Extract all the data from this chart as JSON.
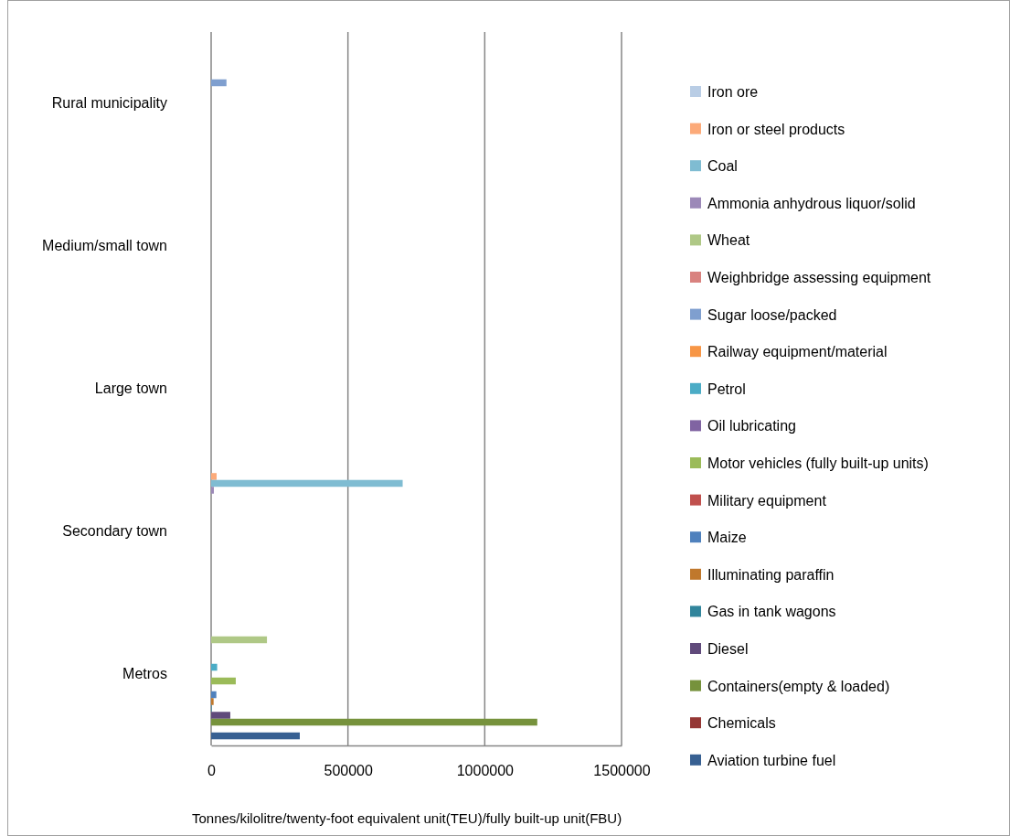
{
  "chart_data": {
    "type": "bar",
    "orientation": "horizontal",
    "xlabel": "Tonnes/kilolitre/twenty-foot equivalent unit(TEU)/fully built-up unit(FBU)",
    "categories": [
      "Rural municipality",
      "Medium/small town",
      "Large town",
      "Secondary town",
      "Metros"
    ],
    "xlim": [
      0,
      1500000
    ],
    "xticks": [
      0,
      500000,
      1000000,
      1500000
    ],
    "grid": "x",
    "legend": "right",
    "series": [
      {
        "name": "Iron ore",
        "color": "#b9cde5",
        "values": [
          null,
          null,
          null,
          null,
          null
        ]
      },
      {
        "name": "Iron or steel products",
        "color": "#fcaa79",
        "values": [
          null,
          null,
          null,
          20000,
          null
        ]
      },
      {
        "name": "Coal",
        "color": "#7fbcd2",
        "values": [
          null,
          null,
          null,
          700000,
          null
        ]
      },
      {
        "name": "Ammonia anhydrous liquor/solid",
        "color": "#9c89b8",
        "values": [
          null,
          null,
          null,
          10000,
          null
        ]
      },
      {
        "name": "Wheat",
        "color": "#afc886",
        "values": [
          null,
          null,
          null,
          null,
          204000
        ]
      },
      {
        "name": "Weighbridge assessing equipment",
        "color": "#d9827f",
        "values": [
          null,
          null,
          null,
          null,
          null
        ]
      },
      {
        "name": "Sugar loose/packed",
        "color": "#7f9fcf",
        "values": [
          56000,
          null,
          null,
          null,
          null
        ]
      },
      {
        "name": "Railway equipment/material",
        "color": "#f79646",
        "values": [
          null,
          null,
          null,
          null,
          null
        ]
      },
      {
        "name": "Petrol",
        "color": "#4bacc6",
        "values": [
          null,
          null,
          null,
          null,
          22000
        ]
      },
      {
        "name": "Oil lubricating",
        "color": "#8064a2",
        "values": [
          null,
          null,
          null,
          null,
          null
        ]
      },
      {
        "name": "Motor vehicles (fully built-up units)",
        "color": "#9bbb59",
        "values": [
          null,
          null,
          null,
          null,
          90000
        ]
      },
      {
        "name": "Military equipment",
        "color": "#c0504d",
        "values": [
          null,
          null,
          null,
          null,
          null
        ]
      },
      {
        "name": "Maize",
        "color": "#4f81bd",
        "values": [
          null,
          null,
          null,
          null,
          19000
        ]
      },
      {
        "name": "Illuminating paraffin",
        "color": "#c0782c",
        "values": [
          null,
          null,
          null,
          null,
          9000
        ]
      },
      {
        "name": "Gas in tank wagons",
        "color": "#31859c",
        "values": [
          null,
          null,
          null,
          null,
          2000
        ]
      },
      {
        "name": "Diesel",
        "color": "#604a7b",
        "values": [
          null,
          null,
          null,
          null,
          70000
        ]
      },
      {
        "name": "Containers(empty & loaded)",
        "color": "#76923c",
        "values": [
          null,
          null,
          null,
          null,
          1192000
        ]
      },
      {
        "name": "Chemicals",
        "color": "#953735",
        "values": [
          null,
          null,
          null,
          null,
          null
        ]
      },
      {
        "name": "Aviation turbine fuel",
        "color": "#376092",
        "values": [
          null,
          null,
          null,
          null,
          324000
        ]
      }
    ]
  }
}
